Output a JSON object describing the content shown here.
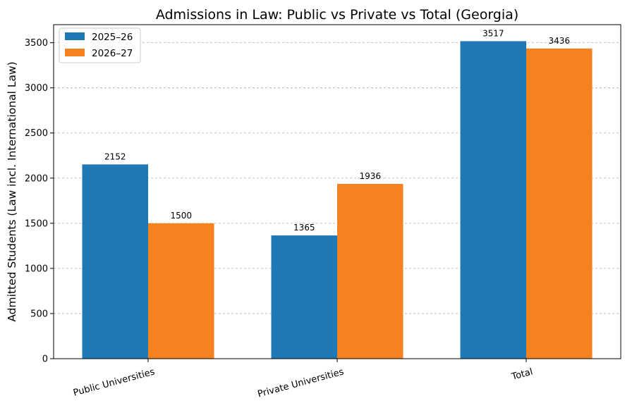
{
  "chart_data": {
    "type": "bar",
    "title": "Admissions in Law: Public vs Private vs Total (Georgia)",
    "xlabel": "",
    "ylabel": "Admitted Students (Law incl. International Law)",
    "categories": [
      "Public Universities",
      "Private Universities",
      "Total"
    ],
    "series": [
      {
        "name": "2025–26",
        "values": [
          2152,
          1365,
          3517
        ],
        "color": "#1f77b4"
      },
      {
        "name": "2026–27",
        "values": [
          1500,
          1936,
          3436
        ],
        "color": "#f58220"
      }
    ],
    "ylim": [
      0,
      3700
    ],
    "yticks": [
      0,
      500,
      1000,
      1500,
      2000,
      2500,
      3000,
      3500
    ],
    "grid": "horizontal-dashed",
    "legend_position": "top-left",
    "data_labels": true,
    "xtick_rotation_deg": -15
  }
}
